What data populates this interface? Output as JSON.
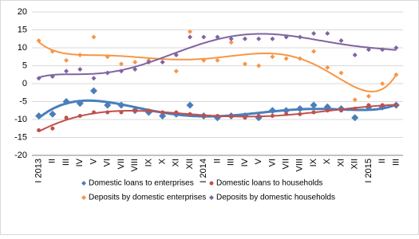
{
  "chart_data": {
    "type": "scatter",
    "categories": [
      "I 2013",
      "II",
      "III",
      "IV",
      "V",
      "VI",
      "VII",
      "VIII",
      "IX",
      "X",
      "XI",
      "XII",
      "I 2014",
      "II",
      "III",
      "IV",
      "V",
      "VI",
      "VII",
      "VIII",
      "IX",
      "X",
      "XI",
      "XII",
      "I 2015",
      "II",
      "III"
    ],
    "series": [
      {
        "name": "Domestic loans to enterprises",
        "color": "#4a7ebb",
        "marker": "diamond",
        "values": [
          -9,
          -8.5,
          -5,
          -5.5,
          -2,
          -6,
          -6,
          -7.5,
          -8,
          -9,
          -8.5,
          -6,
          -9,
          -9.5,
          -9,
          -9,
          -9.5,
          -7.5,
          -7.5,
          -7,
          -6,
          -6.5,
          -7,
          -9.5,
          -6.5,
          -6.5,
          -6
        ]
      },
      {
        "name": "Domestic loans to households",
        "color": "#c0504d",
        "marker": "circle",
        "values": [
          -13,
          -12.5,
          -9.5,
          -9,
          -8,
          -8,
          -8,
          -7.5,
          -7.5,
          -8,
          -8,
          -8.5,
          -9,
          -9,
          -9,
          -9.5,
          -9,
          -9,
          -8.5,
          -8.5,
          -8,
          -7.5,
          -7.5,
          -7,
          -6,
          -6,
          -6
        ]
      },
      {
        "name": "Deposits by domestic enterprises",
        "color": "#f79646",
        "marker": "diamond",
        "values": [
          12,
          9,
          6.5,
          8,
          13,
          7.5,
          5.5,
          6,
          6.5,
          6,
          3.5,
          14.5,
          6.5,
          6.5,
          11.5,
          5.5,
          5,
          7.5,
          7,
          7,
          9,
          4.5,
          3,
          -4.5,
          -3.5,
          0,
          2.5
        ]
      },
      {
        "name": "Deposits by domestic households",
        "color": "#8064a2",
        "marker": "diamond",
        "values": [
          1.5,
          2,
          3.5,
          4,
          1.5,
          3,
          3.5,
          4,
          6,
          6,
          8,
          13,
          13,
          13,
          12.5,
          12.5,
          12.5,
          12.5,
          13,
          13,
          14,
          14,
          12,
          8,
          9.5,
          9.5,
          10
        ]
      }
    ],
    "trendline": "polynomial",
    "ylim": [
      -20,
      20
    ],
    "yticks": [
      -20,
      -15,
      -10,
      -5,
      0,
      5,
      10,
      15,
      20
    ],
    "grid": true,
    "legend": "bottom"
  }
}
